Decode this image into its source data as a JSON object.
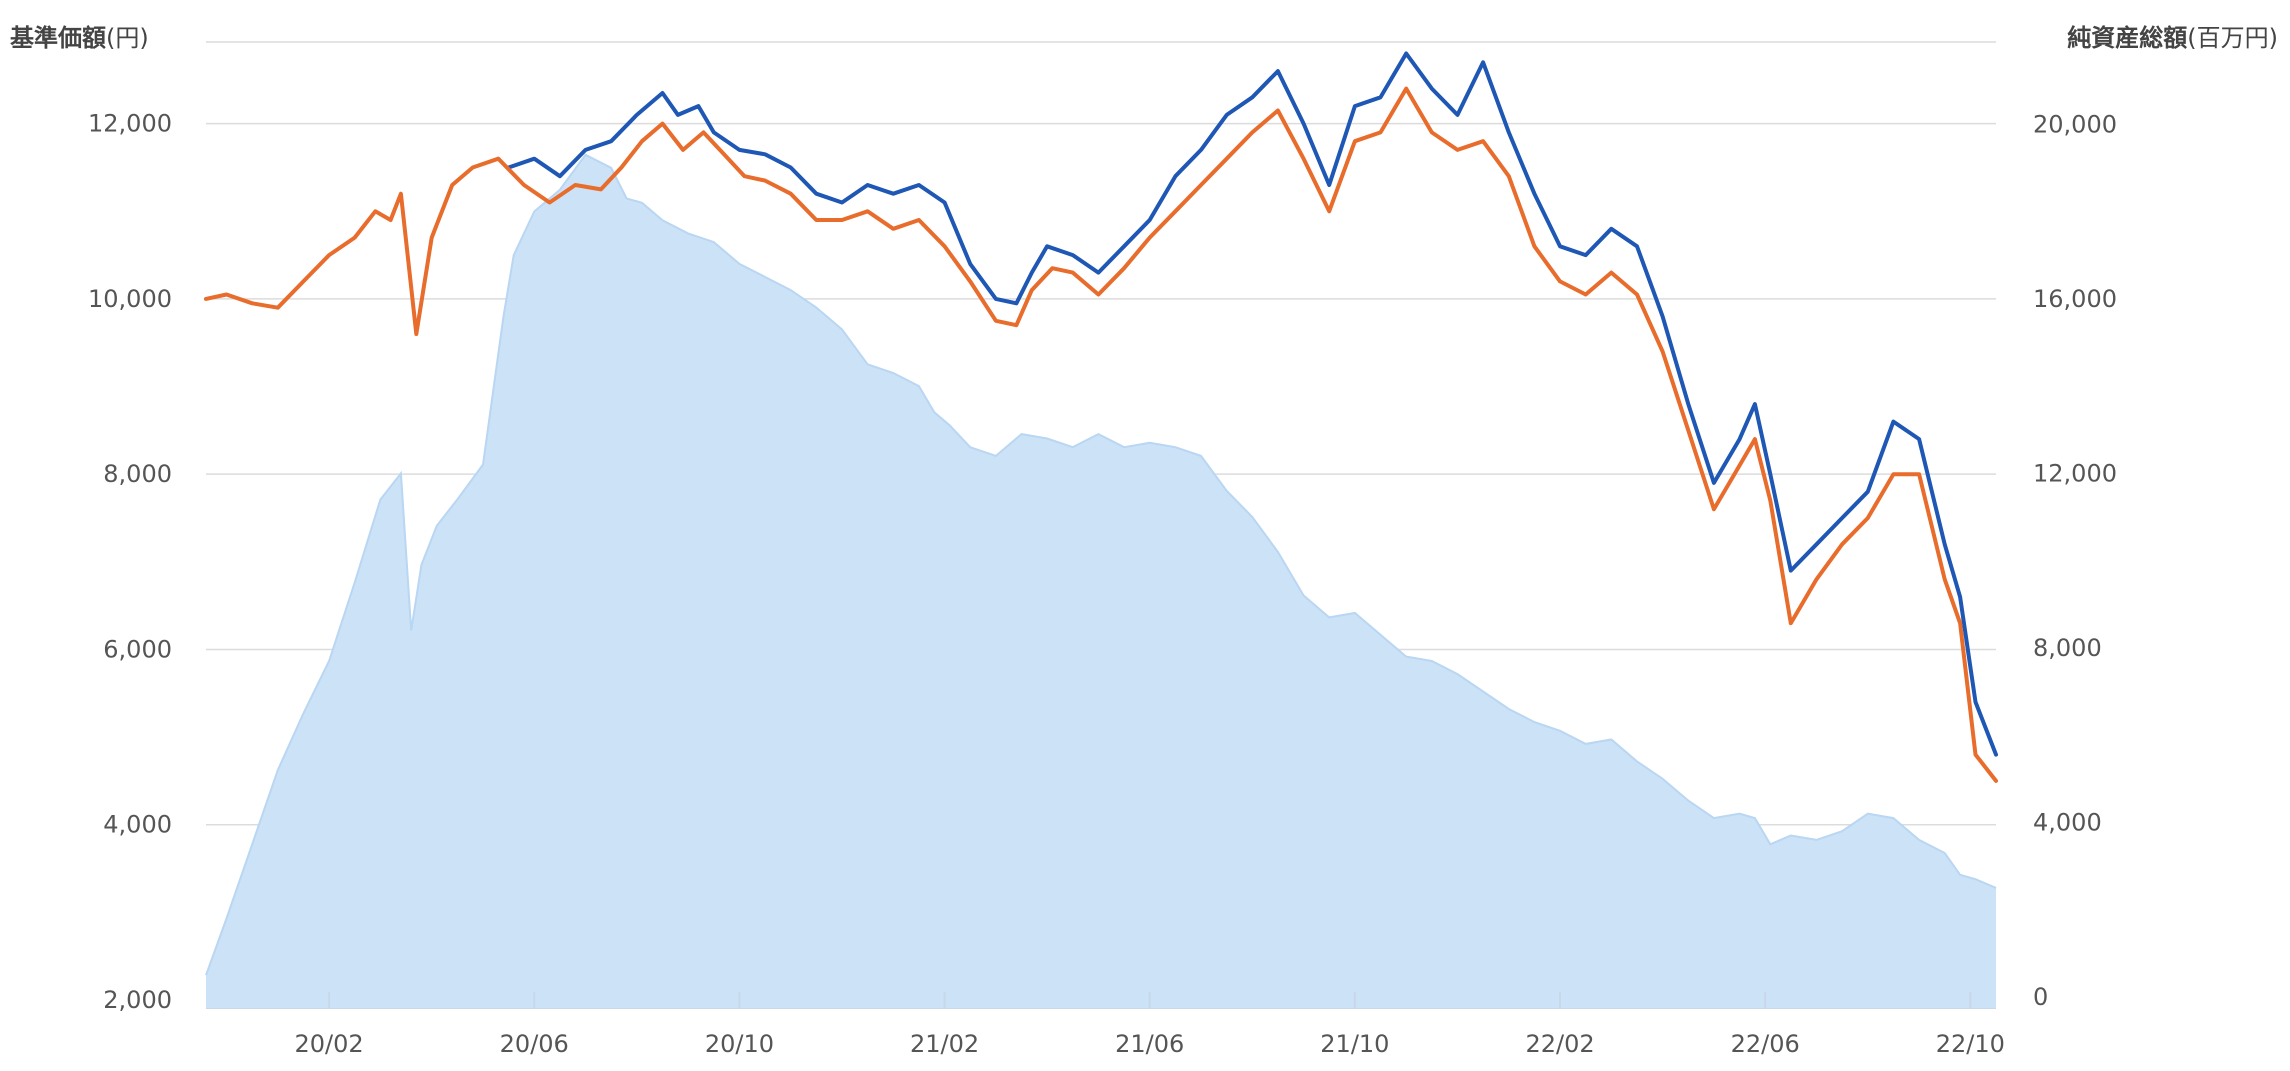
{
  "chart_data": {
    "type": "line",
    "left_axis_title_bold": "基準価額",
    "left_axis_title_unit": "(円)",
    "right_axis_title_bold": "純資産総額",
    "right_axis_title_unit": "(百万円)",
    "left_ylim": [
      2000,
      13000
    ],
    "right_ylim": [
      0,
      22000
    ],
    "left_ticks": [
      "2,000",
      "4,000",
      "6,000",
      "8,000",
      "10,000",
      "12,000"
    ],
    "left_tick_values": [
      2000,
      4000,
      6000,
      8000,
      10000,
      12000
    ],
    "right_ticks": [
      "0",
      "4,000",
      "8,000",
      "12,000",
      "16,000",
      "20,000"
    ],
    "right_tick_values": [
      0,
      4000,
      8000,
      12000,
      16000,
      20000
    ],
    "x_ticks": [
      "20/02",
      "20/06",
      "20/10",
      "21/02",
      "21/06",
      "21/10",
      "22/02",
      "22/06",
      "22/10"
    ],
    "x_tick_positions": [
      1.5,
      5.5,
      9.5,
      13.5,
      17.5,
      21.5,
      25.5,
      29.5,
      33.5
    ],
    "x_range": [
      -0.9,
      34.0
    ],
    "grid": true,
    "series": [
      {
        "kind": "area",
        "axis": "right",
        "color": "#cce2f7",
        "edge_color": "#b9d6f2",
        "x": [
          -0.9,
          -0.5,
          0.0,
          0.5,
          1.0,
          1.5,
          2.0,
          2.5,
          2.9,
          3.1,
          3.3,
          3.6,
          4.0,
          4.5,
          4.9,
          5.1,
          5.5,
          6.0,
          6.5,
          7.0,
          7.3,
          7.6,
          8.0,
          8.5,
          9.0,
          9.5,
          10.0,
          10.5,
          11.0,
          11.5,
          12.0,
          12.5,
          13.0,
          13.3,
          13.6,
          14.0,
          14.5,
          15.0,
          15.5,
          16.0,
          16.5,
          17.0,
          17.5,
          18.0,
          18.5,
          19.0,
          19.5,
          20.0,
          20.5,
          21.0,
          21.5,
          22.0,
          22.5,
          23.0,
          23.5,
          24.0,
          24.5,
          25.0,
          25.5,
          26.0,
          26.5,
          27.0,
          27.5,
          28.0,
          28.5,
          29.0,
          29.3,
          29.6,
          30.0,
          30.5,
          31.0,
          31.5,
          32.0,
          32.5,
          33.0,
          33.3,
          33.6,
          34.0
        ],
        "y": [
          500,
          1800,
          3500,
          5200,
          6500,
          7700,
          9500,
          11400,
          12000,
          8400,
          9900,
          10800,
          11400,
          12200,
          15600,
          17000,
          18000,
          18500,
          19300,
          19000,
          18300,
          18200,
          17800,
          17500,
          17300,
          16800,
          16500,
          16200,
          15800,
          15300,
          14500,
          14300,
          14000,
          13400,
          13100,
          12600,
          12400,
          12900,
          12800,
          12600,
          12900,
          12600,
          12700,
          12600,
          12400,
          11600,
          11000,
          10200,
          9200,
          8700,
          8800,
          8300,
          7800,
          7700,
          7400,
          7000,
          6600,
          6300,
          6100,
          5800,
          5900,
          5400,
          5000,
          4500,
          4100,
          4200,
          4100,
          3500,
          3700,
          3600,
          3800,
          4200,
          4100,
          3600,
          3300,
          2800,
          2700,
          2500
        ]
      },
      {
        "kind": "line",
        "axis": "left",
        "color": "#1f57b5",
        "x": [
          5.0,
          5.5,
          6.0,
          6.5,
          7.0,
          7.5,
          8.0,
          8.3,
          8.7,
          9.0,
          9.5,
          10.0,
          10.5,
          11.0,
          11.5,
          12.0,
          12.5,
          13.0,
          13.5,
          14.0,
          14.5,
          14.9,
          15.2,
          15.5,
          16.0,
          16.5,
          17.0,
          17.5,
          18.0,
          18.5,
          19.0,
          19.5,
          20.0,
          20.5,
          21.0,
          21.5,
          22.0,
          22.5,
          23.0,
          23.5,
          24.0,
          24.5,
          25.0,
          25.5,
          26.0,
          26.5,
          27.0,
          27.5,
          28.0,
          28.5,
          29.0,
          29.3,
          29.6,
          30.0,
          30.5,
          31.0,
          31.5,
          32.0,
          32.5,
          33.0,
          33.3,
          33.6,
          34.0
        ],
        "y": [
          11500,
          11600,
          11400,
          11700,
          11800,
          12100,
          12350,
          12100,
          12200,
          11900,
          11700,
          11650,
          11500,
          11200,
          11100,
          11300,
          11200,
          11300,
          11100,
          10400,
          10000,
          9950,
          10300,
          10600,
          10500,
          10300,
          10600,
          10900,
          11400,
          11700,
          12100,
          12300,
          12600,
          12000,
          11300,
          12200,
          12300,
          12800,
          12400,
          12100,
          12700,
          11900,
          11200,
          10600,
          10500,
          10800,
          10600,
          9800,
          8800,
          7900,
          8400,
          8800,
          8000,
          6900,
          7200,
          7500,
          7800,
          8600,
          8400,
          7200,
          6600,
          5400,
          4800
        ]
      },
      {
        "kind": "line",
        "axis": "left",
        "color": "#e86c2c",
        "x": [
          -0.9,
          -0.5,
          0.0,
          0.5,
          1.0,
          1.5,
          2.0,
          2.4,
          2.7,
          2.9,
          3.2,
          3.5,
          3.9,
          4.3,
          4.8,
          5.3,
          5.8,
          6.3,
          6.8,
          7.2,
          7.6,
          8.0,
          8.4,
          8.8,
          9.2,
          9.6,
          10.0,
          10.5,
          11.0,
          11.5,
          12.0,
          12.5,
          13.0,
          13.5,
          14.0,
          14.5,
          14.9,
          15.2,
          15.6,
          16.0,
          16.5,
          17.0,
          17.5,
          18.0,
          18.5,
          19.0,
          19.5,
          20.0,
          20.5,
          21.0,
          21.5,
          22.0,
          22.5,
          23.0,
          23.5,
          24.0,
          24.5,
          25.0,
          25.5,
          26.0,
          26.5,
          27.0,
          27.5,
          28.0,
          28.5,
          29.0,
          29.3,
          29.6,
          30.0,
          30.5,
          31.0,
          31.5,
          32.0,
          32.5,
          33.0,
          33.3,
          33.6,
          34.0
        ],
        "y": [
          10000,
          10050,
          9950,
          9900,
          10200,
          10500,
          10700,
          11000,
          10900,
          11200,
          9600,
          10700,
          11300,
          11500,
          11600,
          11300,
          11100,
          11300,
          11250,
          11500,
          11800,
          12000,
          11700,
          11900,
          11650,
          11400,
          11350,
          11200,
          10900,
          10900,
          11000,
          10800,
          10900,
          10600,
          10200,
          9750,
          9700,
          10100,
          10350,
          10300,
          10050,
          10350,
          10700,
          11000,
          11300,
          11600,
          11900,
          12150,
          11600,
          11000,
          11800,
          11900,
          12400,
          11900,
          11700,
          11800,
          11400,
          10600,
          10200,
          10050,
          10300,
          10050,
          9400,
          8500,
          7600,
          8100,
          8400,
          7700,
          6300,
          6800,
          7200,
          7500,
          8000,
          8000,
          6800,
          6300,
          4800,
          4500
        ]
      }
    ]
  }
}
